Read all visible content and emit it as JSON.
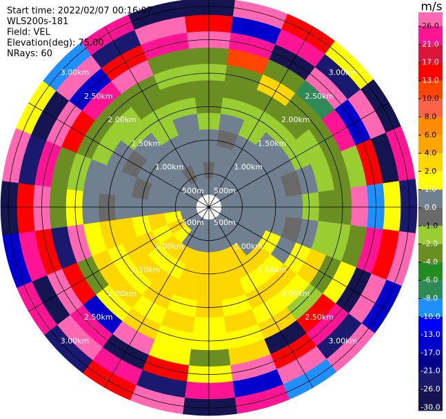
{
  "chart_data": {
    "type": "ppi",
    "info": [
      "Start time: 2022/02/07 00:16:07",
      "WLS200s-181",
      "Field: VEL",
      "Elevation(deg): 75.00",
      "NRays: 60"
    ],
    "ring_labels": [
      "500m",
      "1.00km",
      "1.50km",
      "2.00km",
      "2.50km",
      "3.00km"
    ],
    "azimuths": [
      0,
      15,
      30,
      45,
      60,
      75,
      90,
      105,
      120,
      135,
      150,
      165,
      180,
      195,
      210,
      225,
      240,
      255,
      270,
      285,
      300,
      315,
      330,
      345
    ],
    "values": [
      [
        0,
        -0.5,
        0,
        0,
        -1.5,
        -3,
        -3,
        -1.5,
        -3,
        27,
        15,
        -28
      ],
      [
        0,
        0,
        0,
        -0.5,
        0,
        -1.5,
        -3,
        -3,
        10,
        23,
        -15,
        27
      ],
      [
        0,
        0,
        0,
        0,
        -1.5,
        -1.5,
        -3,
        3,
        -3,
        -28,
        23,
        15
      ],
      [
        0,
        0,
        0,
        0,
        0,
        -1.5,
        -3,
        -3,
        -7,
        27,
        -22,
        1.5
      ],
      [
        0,
        0,
        0,
        0,
        0,
        -1.5,
        -1.5,
        -3,
        23,
        -15,
        27,
        -28
      ],
      [
        0,
        0,
        0,
        0,
        -0.5,
        0,
        -1.5,
        -3,
        -1.5,
        15,
        -28,
        23
      ],
      [
        0,
        0,
        0,
        0,
        0,
        -1.5,
        -3,
        -3,
        27,
        -9,
        1.5,
        -22
      ],
      [
        0,
        0,
        0,
        0,
        -0.5,
        0,
        -1.5,
        -1.5,
        -3,
        23,
        15,
        27
      ],
      [
        0,
        0,
        0,
        1.5,
        0,
        1.5,
        3,
        -3,
        1.5,
        -28,
        27,
        -15
      ],
      [
        0,
        0,
        0,
        3,
        1.5,
        3,
        1.5,
        -1.5,
        15,
        23,
        -22,
        27
      ],
      [
        0,
        0,
        3,
        3,
        1.5,
        3,
        1.5,
        3,
        -28,
        15,
        27,
        -9
      ],
      [
        0,
        0,
        3,
        3,
        3,
        1.5,
        3,
        1.5,
        3,
        27,
        -15,
        23
      ],
      [
        0,
        0,
        3,
        3,
        3,
        3,
        1.5,
        1.5,
        -3,
        1.5,
        23,
        -28
      ],
      [
        0,
        0,
        3,
        3,
        3,
        1.5,
        3,
        1.5,
        1.5,
        15,
        -22,
        27
      ],
      [
        0,
        0,
        3,
        1.5,
        3,
        3,
        1.5,
        3,
        27,
        -28,
        23,
        15
      ],
      [
        0,
        1.5,
        3,
        1.5,
        3,
        1.5,
        3,
        1.5,
        -15,
        23,
        27,
        -22
      ],
      [
        0,
        3,
        1.5,
        3,
        3,
        1.5,
        3,
        -3,
        15,
        27,
        -28,
        23
      ],
      [
        0,
        1.5,
        3,
        1.5,
        3,
        3,
        1.5,
        27,
        -22,
        15,
        23,
        -15
      ],
      [
        0,
        0,
        0,
        0,
        0,
        -0.5,
        0,
        1.5,
        -3,
        27,
        15,
        -28
      ],
      [
        0,
        0,
        0,
        -0.5,
        0,
        0,
        0,
        -1.5,
        -3,
        23,
        -22,
        27
      ],
      [
        0,
        0,
        0,
        0,
        -0.5,
        0,
        -1.5,
        -3,
        15,
        27,
        -28,
        1.5
      ],
      [
        0,
        0,
        0,
        0,
        0,
        -1.5,
        -1.5,
        -3,
        23,
        -15,
        27,
        -9
      ],
      [
        0,
        -0.5,
        0,
        0,
        -1.5,
        -1.5,
        -3,
        -3,
        27,
        15,
        -22,
        23
      ],
      [
        0,
        0,
        0,
        0,
        0,
        -1.5,
        -3,
        -1.5,
        -3,
        23,
        27,
        -28
      ]
    ],
    "colorbar": {
      "label": "m/s",
      "ticks": [
        {
          "value": 26,
          "label": "26.0"
        },
        {
          "value": 21,
          "label": "21.0"
        },
        {
          "value": 17,
          "label": "17.0"
        },
        {
          "value": 13,
          "label": "13.0"
        },
        {
          "value": 10,
          "label": "10.0"
        },
        {
          "value": 8,
          "label": "8.0"
        },
        {
          "value": 6,
          "label": "6.0"
        },
        {
          "value": 4,
          "label": "4.0"
        },
        {
          "value": 2,
          "label": "2.0"
        },
        {
          "value": 1,
          "label": "1.0"
        },
        {
          "value": 0,
          "label": "0.0"
        },
        {
          "value": -1,
          "label": "-1.0"
        },
        {
          "value": -2,
          "label": "-2.0"
        },
        {
          "value": -4,
          "label": "-4.0"
        },
        {
          "value": -6,
          "label": "-6.0"
        },
        {
          "value": -8,
          "label": "-8.0"
        },
        {
          "value": -10,
          "label": "-10.0"
        },
        {
          "value": -13,
          "label": "-13.0"
        },
        {
          "value": -17,
          "label": "-17.0"
        },
        {
          "value": -21,
          "label": "-21.0"
        },
        {
          "value": -26,
          "label": "-26.0"
        },
        {
          "value": -30,
          "label": "-30.0"
        }
      ],
      "colors": [
        "#ff69b4",
        "#ff1493",
        "#dc143c",
        "#ff0000",
        "#ff4500",
        "#ff6347",
        "#ff8c00",
        "#ffa500",
        "#ffd700",
        "#ffff00",
        "#708090",
        "#696969",
        "#9acd32",
        "#6b8e23",
        "#228b22",
        "#2e8b57",
        "#1e90ff",
        "#0000ff",
        "#0000cd",
        "#00008b",
        "#191970",
        "#141450"
      ]
    }
  }
}
